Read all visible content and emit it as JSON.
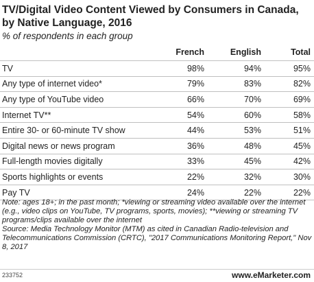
{
  "chart_data": {
    "type": "table",
    "title": "TV/Digital Video Content Viewed by Consumers in Canada, by Native Language, 2016",
    "subtitle": "% of respondents in each group",
    "columns": [
      "French",
      "English",
      "Total"
    ],
    "rows": [
      {
        "label": "TV",
        "values": [
          "98%",
          "94%",
          "95%"
        ]
      },
      {
        "label": "Any type of internet video*",
        "values": [
          "79%",
          "83%",
          "82%"
        ]
      },
      {
        "label": "Any type of YouTube video",
        "values": [
          "66%",
          "70%",
          "69%"
        ]
      },
      {
        "label": "Internet TV**",
        "values": [
          "54%",
          "60%",
          "58%"
        ]
      },
      {
        "label": "Entire 30- or 60-minute TV show",
        "values": [
          "44%",
          "53%",
          "51%"
        ]
      },
      {
        "label": "Digital news or news program",
        "values": [
          "36%",
          "48%",
          "45%"
        ]
      },
      {
        "label": "Full-length movies digitally",
        "values": [
          "33%",
          "45%",
          "42%"
        ]
      },
      {
        "label": "Sports highlights or events",
        "values": [
          "22%",
          "32%",
          "30%"
        ]
      },
      {
        "label": "Pay TV",
        "values": [
          "24%",
          "22%",
          "22%"
        ]
      }
    ],
    "note": "Note: ages 18+; in the past month; *viewing or streaming video available over the internet (e.g., video clips on YouTube, TV programs, sports, movies); **viewing or streaming TV programs/clips available over the internet",
    "source": "Source: Media Technology Monitor (MTM) as cited in Canadian Radio-television and Telecommunications Commission (CRTC), \"2017 Communications Monitoring Report,\" Nov 8, 2017"
  },
  "footer": {
    "id": "233752",
    "brand_prefix": "www.",
    "brand_name": "eMarketer",
    "brand_suffix": ".com"
  }
}
